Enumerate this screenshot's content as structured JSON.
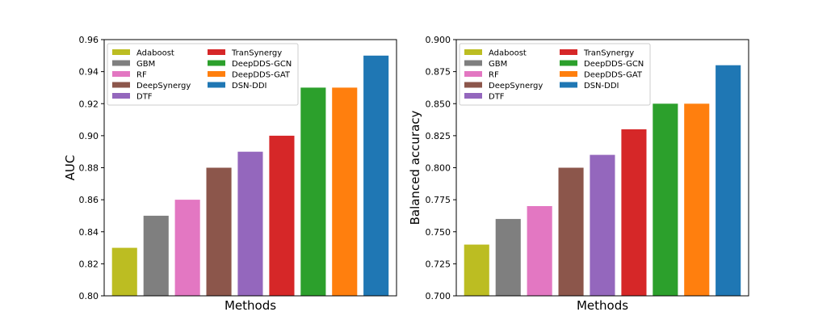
{
  "chart_data": [
    {
      "type": "bar",
      "title": "",
      "xlabel": "Methods",
      "ylabel": "AUC",
      "categories": [
        "Adaboost",
        "GBM",
        "RF",
        "DeepSynergy",
        "DTF",
        "TranSynergy",
        "DeepDDS-GCN",
        "DeepDDS-GAT",
        "DSN-DDI"
      ],
      "values": [
        0.83,
        0.85,
        0.86,
        0.88,
        0.89,
        0.9,
        0.93,
        0.93,
        0.95
      ],
      "colors": [
        "#bcbd22",
        "#7f7f7f",
        "#e377c2",
        "#8c564b",
        "#9467bd",
        "#d62728",
        "#2ca02c",
        "#ff7f0e",
        "#1f77b4"
      ],
      "ylim": [
        0.8,
        0.96
      ],
      "yticks": [
        "0.80",
        "0.82",
        "0.84",
        "0.86",
        "0.88",
        "0.90",
        "0.92",
        "0.94",
        "0.96"
      ],
      "legend": {
        "placement": "top-left",
        "entries": [
          "Adaboost",
          "GBM",
          "RF",
          "DeepSynergy",
          "DTF",
          "TranSynergy",
          "DeepDDS-GCN",
          "DeepDDS-GAT",
          "DSN-DDI"
        ]
      }
    },
    {
      "type": "bar",
      "title": "",
      "xlabel": "Methods",
      "ylabel": "Balanced accuracy",
      "categories": [
        "Adaboost",
        "GBM",
        "RF",
        "DeepSynergy",
        "DTF",
        "TranSynergy",
        "DeepDDS-GCN",
        "DeepDDS-GAT",
        "DSN-DDI"
      ],
      "values": [
        0.74,
        0.76,
        0.77,
        0.8,
        0.81,
        0.83,
        0.85,
        0.85,
        0.88
      ],
      "colors": [
        "#bcbd22",
        "#7f7f7f",
        "#e377c2",
        "#8c564b",
        "#9467bd",
        "#d62728",
        "#2ca02c",
        "#ff7f0e",
        "#1f77b4"
      ],
      "ylim": [
        0.7,
        0.9
      ],
      "yticks": [
        "0.700",
        "0.725",
        "0.750",
        "0.775",
        "0.800",
        "0.825",
        "0.850",
        "0.875",
        "0.900"
      ],
      "legend": {
        "placement": "top-left",
        "entries": [
          "Adaboost",
          "GBM",
          "RF",
          "DeepSynergy",
          "DTF",
          "TranSynergy",
          "DeepDDS-GCN",
          "DeepDDS-GAT",
          "DSN-DDI"
        ]
      }
    }
  ]
}
